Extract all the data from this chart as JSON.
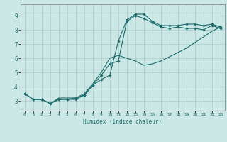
{
  "xlabel": "Humidex (Indice chaleur)",
  "bg_color": "#cce8e6",
  "grid_color": "#aaccca",
  "line_color": "#1a6b6b",
  "xlim": [
    -0.5,
    23.5
  ],
  "ylim": [
    2.3,
    9.8
  ],
  "xticks": [
    0,
    1,
    2,
    3,
    4,
    5,
    6,
    7,
    8,
    9,
    10,
    11,
    12,
    13,
    14,
    15,
    16,
    17,
    18,
    19,
    20,
    21,
    22,
    23
  ],
  "yticks": [
    3,
    4,
    5,
    6,
    7,
    8,
    9
  ],
  "series": {
    "line1": [
      3.5,
      3.1,
      3.1,
      2.8,
      3.1,
      3.1,
      3.1,
      3.4,
      4.1,
      4.5,
      4.8,
      7.2,
      8.7,
      9.1,
      9.1,
      8.6,
      8.3,
      8.3,
      8.3,
      8.4,
      8.4,
      8.3,
      8.4,
      8.2
    ],
    "line2": [
      3.5,
      3.1,
      3.1,
      2.8,
      3.1,
      3.1,
      3.2,
      3.4,
      4.1,
      4.8,
      5.6,
      5.8,
      8.6,
      9.0,
      8.8,
      8.5,
      8.2,
      8.1,
      8.2,
      8.1,
      8.1,
      8.0,
      8.3,
      8.1
    ],
    "line3": [
      3.5,
      3.1,
      3.1,
      2.8,
      3.2,
      3.2,
      3.2,
      3.5,
      4.2,
      5.0,
      6.0,
      6.2,
      6.0,
      5.8,
      5.5,
      5.6,
      5.8,
      6.1,
      6.4,
      6.7,
      7.1,
      7.5,
      7.9,
      8.2
    ]
  }
}
